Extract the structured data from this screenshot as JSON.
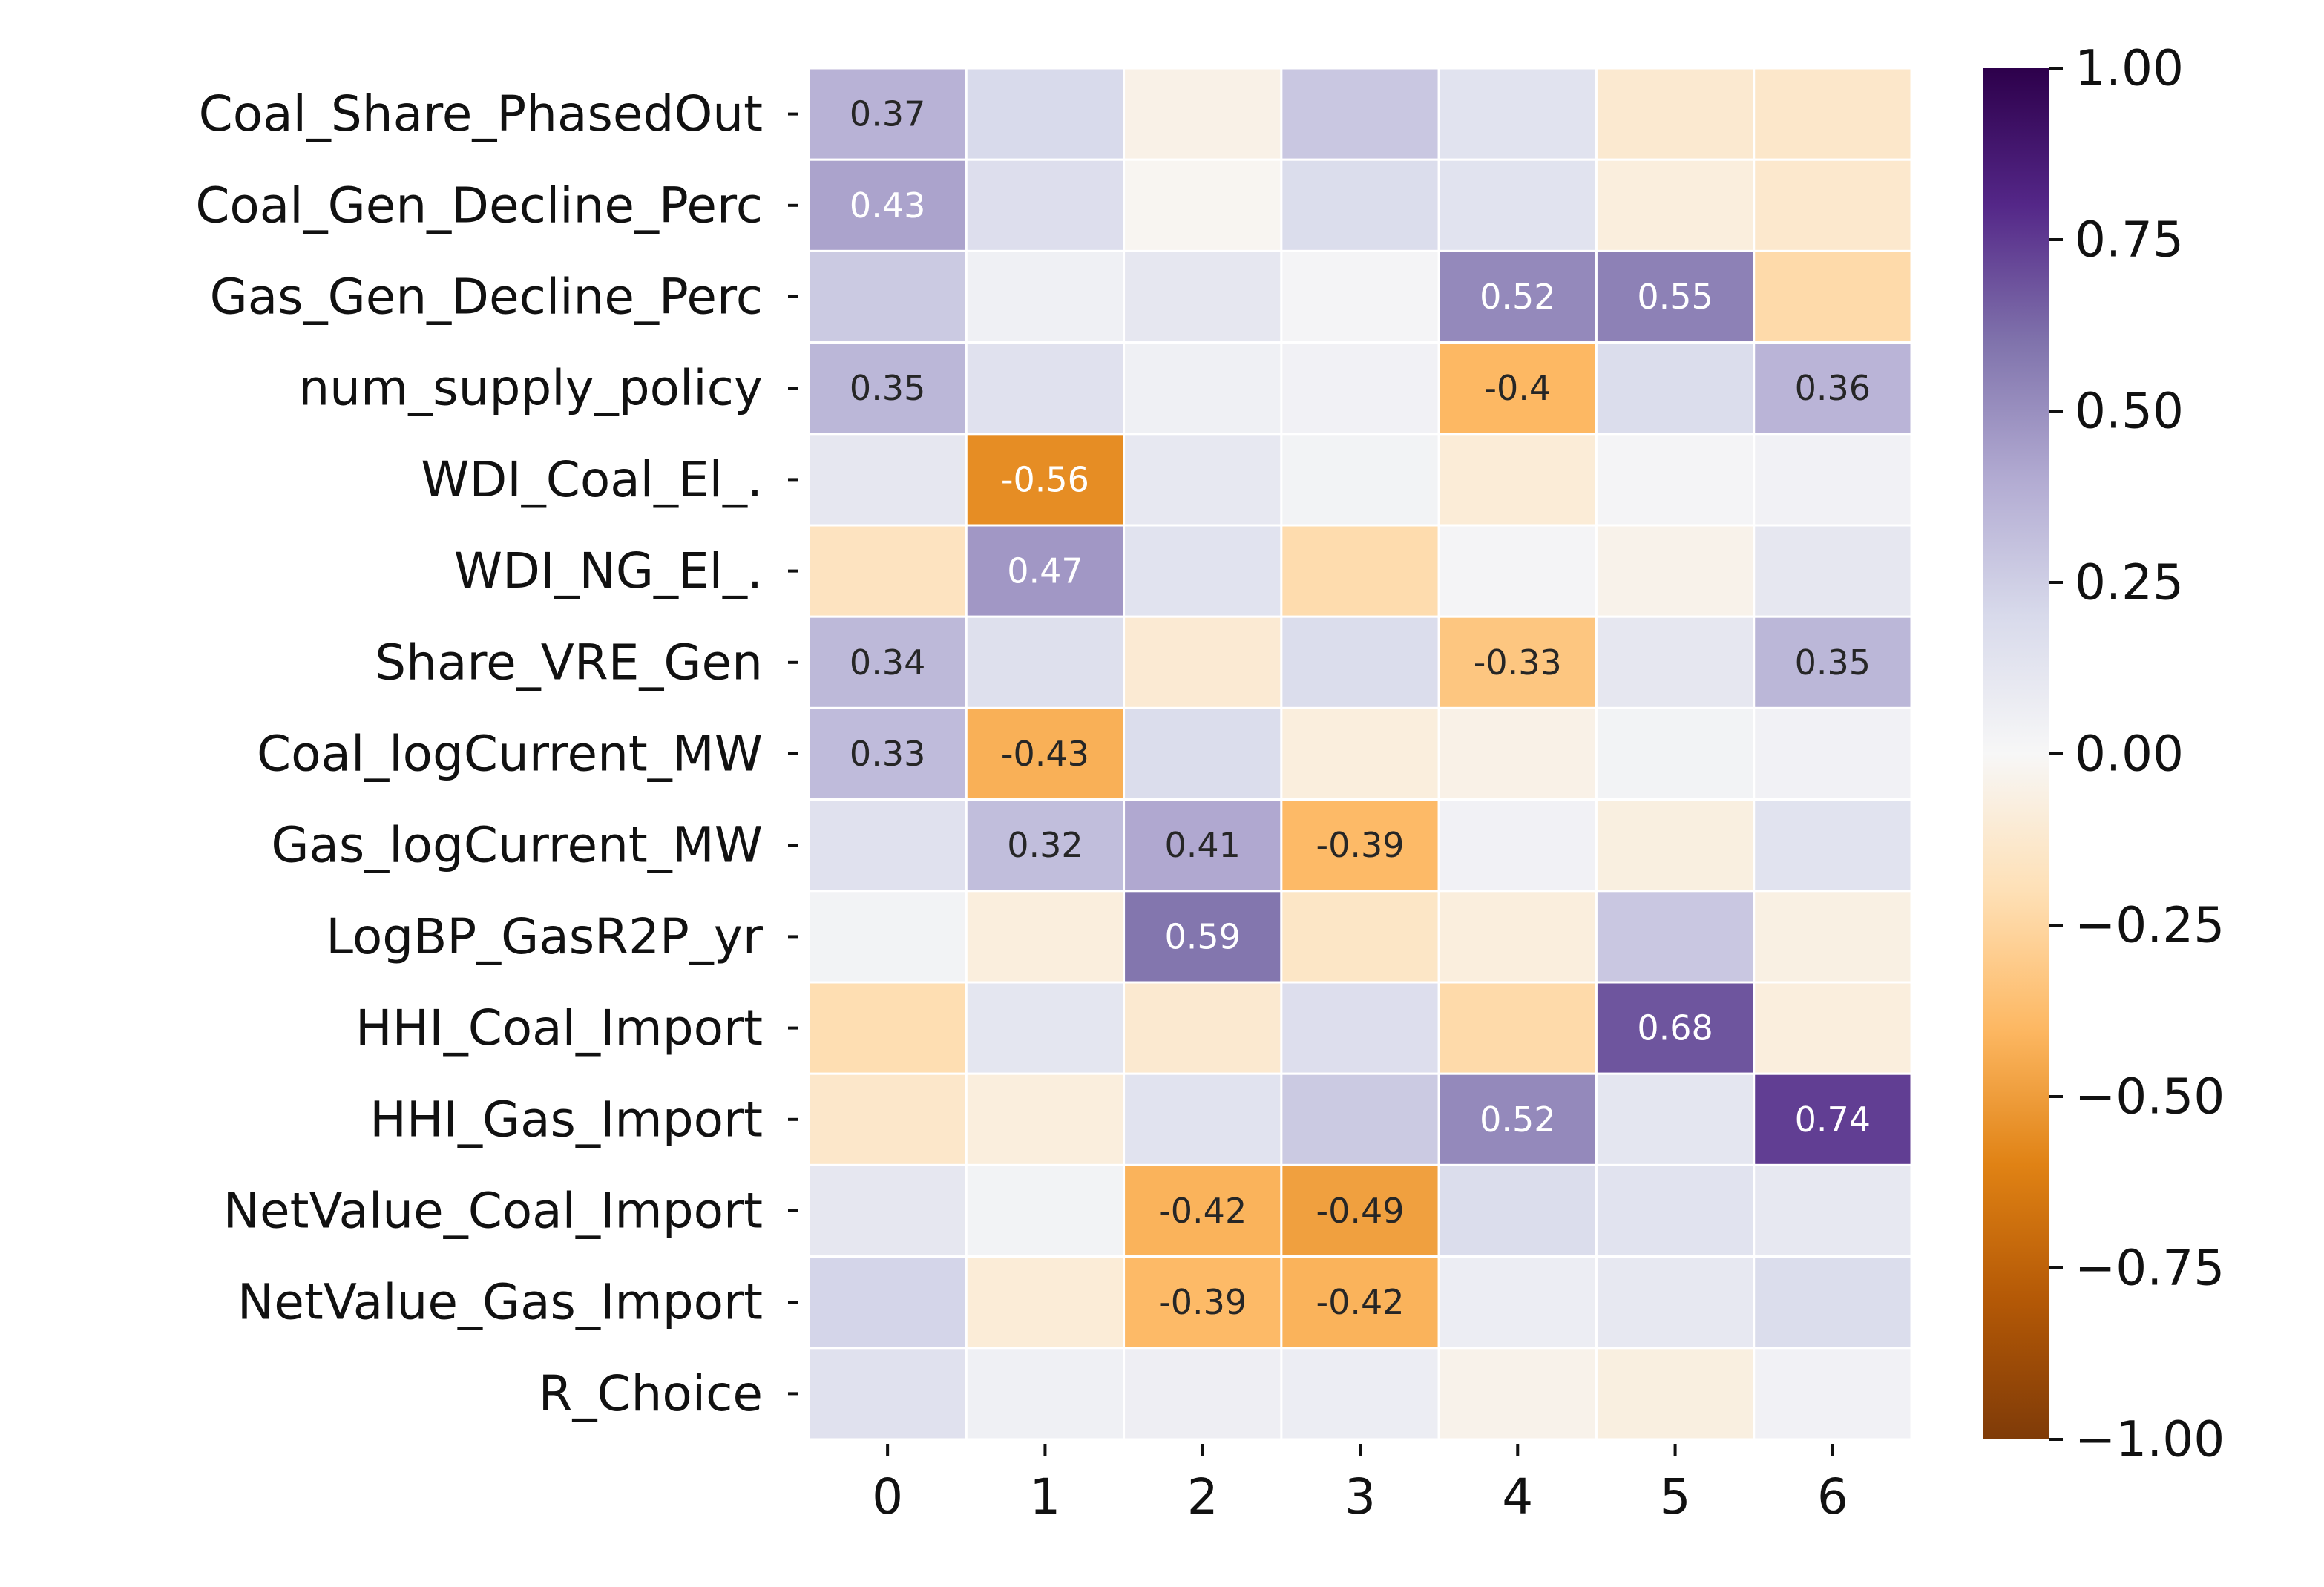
{
  "chart_data": {
    "type": "heatmap",
    "title": "",
    "xlabel": "",
    "ylabel": "",
    "rows": [
      "Coal_Share_PhasedOut",
      "Coal_Gen_Decline_Perc",
      "Gas_Gen_Decline_Perc",
      "num_supply_policy",
      "WDI_Coal_El_.",
      "WDI_NG_El_.",
      "Share_VRE_Gen",
      "Coal_logCurrent_MW",
      "Gas_logCurrent_MW",
      "LogBP_GasR2P_yr",
      "HHI_Coal_Import",
      "HHI_Gas_Import",
      "NetValue_Coal_Import",
      "NetValue_Gas_Import",
      "R_Choice"
    ],
    "columns": [
      "0",
      "1",
      "2",
      "3",
      "4",
      "5",
      "6"
    ],
    "values": [
      [
        0.37,
        0.2,
        -0.05,
        0.28,
        0.14,
        -0.12,
        -0.14
      ],
      [
        0.43,
        0.17,
        -0.02,
        0.18,
        0.14,
        -0.08,
        -0.13
      ],
      [
        0.27,
        0.05,
        0.11,
        0.02,
        0.52,
        0.55,
        -0.23
      ],
      [
        0.35,
        0.15,
        0.05,
        0.04,
        -0.4,
        0.18,
        0.36
      ],
      [
        0.11,
        -0.56,
        0.1,
        0.03,
        -0.1,
        0.02,
        0.04
      ],
      [
        -0.17,
        0.47,
        0.14,
        -0.22,
        0.02,
        -0.04,
        0.11
      ],
      [
        0.34,
        0.16,
        -0.11,
        0.18,
        -0.33,
        0.11,
        0.35
      ],
      [
        0.33,
        -0.43,
        0.18,
        -0.08,
        -0.05,
        0.03,
        0.04
      ],
      [
        0.15,
        0.32,
        0.41,
        -0.39,
        0.04,
        -0.07,
        0.14
      ],
      [
        0.03,
        -0.08,
        0.59,
        -0.15,
        -0.08,
        0.28,
        -0.06
      ],
      [
        -0.21,
        0.12,
        -0.12,
        0.17,
        -0.23,
        0.68,
        -0.08
      ],
      [
        -0.14,
        -0.08,
        0.14,
        0.27,
        0.52,
        0.12,
        0.74
      ],
      [
        0.11,
        0.03,
        -0.42,
        -0.49,
        0.18,
        0.14,
        0.1
      ],
      [
        0.22,
        -0.1,
        -0.39,
        -0.42,
        0.07,
        0.1,
        0.18
      ],
      [
        0.15,
        0.05,
        0.06,
        0.07,
        -0.04,
        -0.07,
        0.04
      ]
    ],
    "annotations_shown": [
      [
        0,
        0,
        "0.37"
      ],
      [
        1,
        0,
        "0.43"
      ],
      [
        2,
        4,
        "0.52"
      ],
      [
        2,
        5,
        "0.55"
      ],
      [
        3,
        0,
        "0.35"
      ],
      [
        3,
        4,
        "-0.4"
      ],
      [
        3,
        6,
        "0.36"
      ],
      [
        4,
        1,
        "-0.56"
      ],
      [
        5,
        1,
        "0.47"
      ],
      [
        6,
        0,
        "0.34"
      ],
      [
        6,
        4,
        "-0.33"
      ],
      [
        6,
        6,
        "0.35"
      ],
      [
        7,
        0,
        "0.33"
      ],
      [
        7,
        1,
        "-0.43"
      ],
      [
        8,
        1,
        "0.32"
      ],
      [
        8,
        2,
        "0.41"
      ],
      [
        8,
        3,
        "-0.39"
      ],
      [
        9,
        2,
        "0.59"
      ],
      [
        10,
        5,
        "0.68"
      ],
      [
        11,
        4,
        "0.52"
      ],
      [
        11,
        6,
        "0.74"
      ],
      [
        12,
        2,
        "-0.42"
      ],
      [
        12,
        3,
        "-0.49"
      ],
      [
        13,
        2,
        "-0.39"
      ],
      [
        13,
        3,
        "-0.42"
      ]
    ],
    "colorbar": {
      "min": -1.0,
      "max": 1.0,
      "colormap": "PuOr",
      "ticks": [
        1.0,
        0.75,
        0.5,
        0.25,
        0.0,
        -0.25,
        -0.5,
        -0.75,
        -1.0
      ],
      "tick_labels": [
        "1.00",
        "0.75",
        "0.50",
        "0.25",
        "0.00",
        "−0.25",
        "−0.50",
        "−0.75",
        "−1.00"
      ]
    },
    "grid_lines": true,
    "grid_color": "#ffffff"
  }
}
